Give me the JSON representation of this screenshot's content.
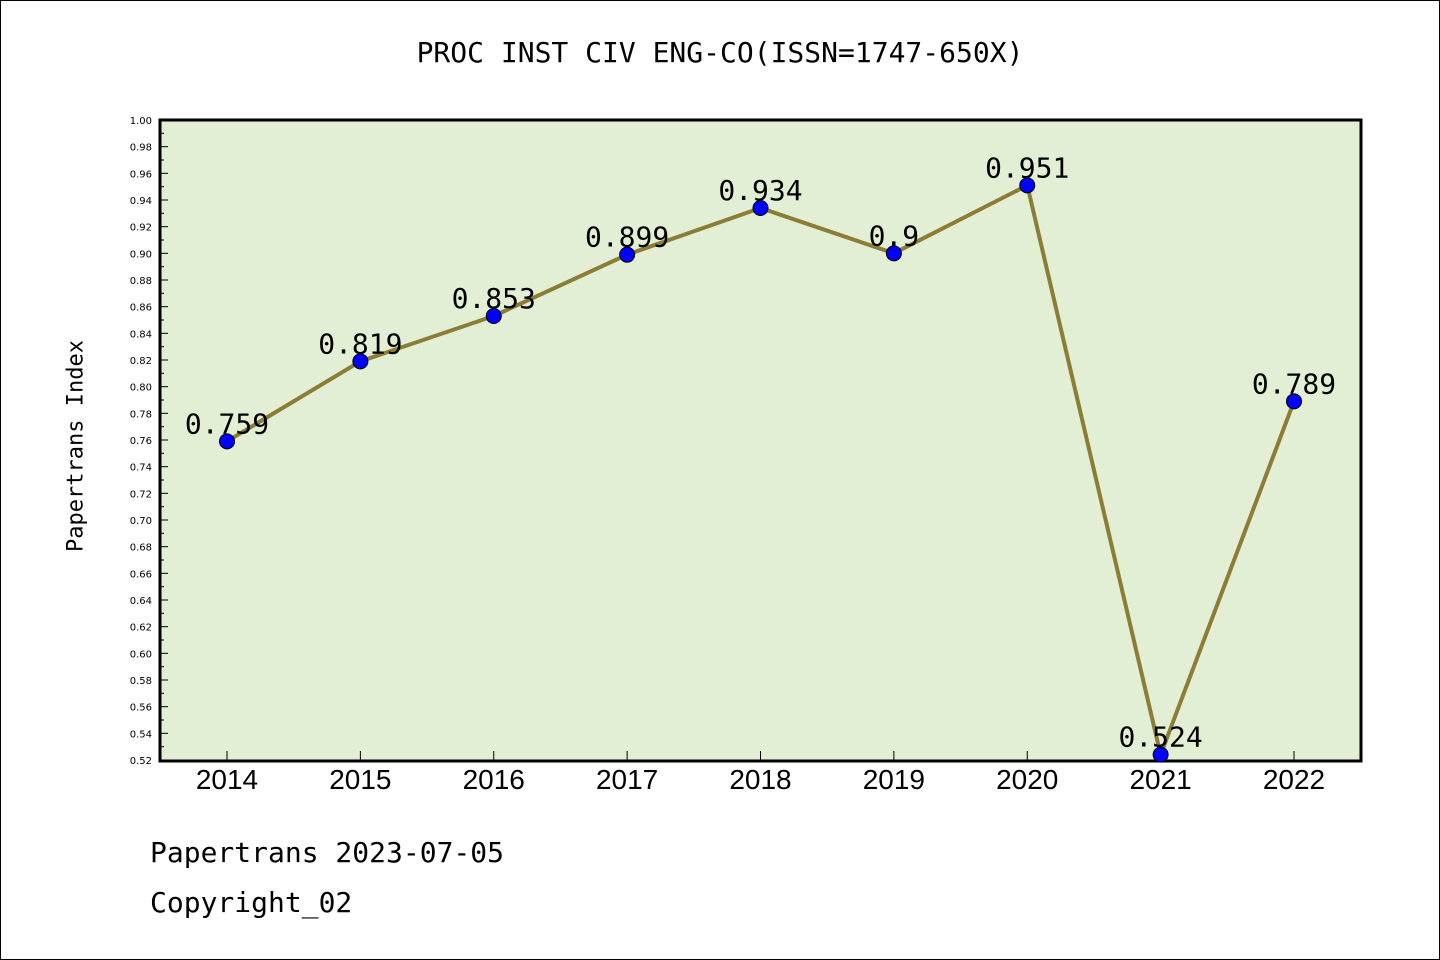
{
  "chart_data": {
    "type": "line",
    "title": "PROC INST CIV ENG-CO(ISSN=1747-650X)",
    "xlabel": "",
    "ylabel": "Papertrans Index",
    "categories": [
      "2014",
      "2015",
      "2016",
      "2017",
      "2018",
      "2019",
      "2020",
      "2021",
      "2022"
    ],
    "values": [
      0.759,
      0.819,
      0.853,
      0.899,
      0.934,
      0.9,
      0.951,
      0.524,
      0.789
    ],
    "data_labels": [
      "0.759",
      "0.819",
      "0.853",
      "0.899",
      "0.934",
      "0.9",
      "0.951",
      "0.524",
      "0.789"
    ],
    "ylim": [
      0.52,
      1.0
    ],
    "yticks": [
      "0.52",
      "0.54",
      "0.56",
      "0.58",
      "0.60",
      "0.62",
      "0.64",
      "0.66",
      "0.68",
      "0.70",
      "0.72",
      "0.74",
      "0.76",
      "0.78",
      "0.80",
      "0.82",
      "0.84",
      "0.86",
      "0.88",
      "0.90",
      "0.92",
      "0.94",
      "0.96",
      "0.98",
      "1.00"
    ],
    "grid": false,
    "colors": {
      "plot_background": "#e2efd4",
      "line": "#8b7d35",
      "marker": "#0000ff"
    }
  },
  "footer": {
    "date_text": "Papertrans 2023-07-05",
    "copyright_text": "Copyright_02"
  }
}
